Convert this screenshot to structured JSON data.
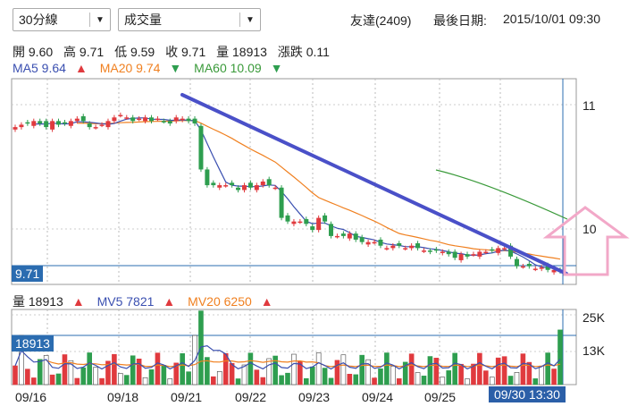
{
  "controls": {
    "interval_value": "30分線",
    "indicator_value": "成交量"
  },
  "stock": {
    "name_code": "友達(2409)",
    "updated_label": "最後日期:",
    "updated_value": "2015/10/01 09:30"
  },
  "ohlc": {
    "open": "開 9.60",
    "high": "高 9.71",
    "low": "低 9.59",
    "close": "收 9.71",
    "volume": "量 18913",
    "change": "漲跌 0.11"
  },
  "ma": {
    "ma5": "MA5 9.64",
    "ma20": "MA20 9.74",
    "ma60": "MA60 10.09"
  },
  "vol_ind": {
    "vol": "量 18913",
    "mv5": "MV5 7821",
    "mv20": "MV20 6250"
  },
  "price_tag": "9.71",
  "vol_tag": "18913",
  "cursor_time": "09/30 13:30",
  "yaxis_price": [
    "11",
    "10"
  ],
  "yaxis_vol": [
    "25K",
    "13K"
  ],
  "xaxis": [
    "09/16",
    "09/18",
    "09/21",
    "09/22",
    "09/23",
    "09/24",
    "09/25"
  ],
  "colors": {
    "up": "#e03a3e",
    "down": "#2e9e4f",
    "ma5": "#3a4fb0",
    "ma20": "#f08020",
    "ma60": "#3a9a3a",
    "annotation": "#4a50c8",
    "arrow": "#f2a8c8",
    "tag": "#2b6cb0"
  },
  "chart_data": {
    "type": "candlestick",
    "price_ylim": [
      9.6,
      11.3
    ],
    "volume_ylim": [
      0,
      26000
    ],
    "x_labels": [
      "09/16",
      "09/18",
      "09/21",
      "09/22",
      "09/23",
      "09/24",
      "09/25",
      "09/30 13:30"
    ],
    "candles_close": [
      10.9,
      10.92,
      10.93,
      10.95,
      10.93,
      10.9,
      10.95,
      10.92,
      10.93,
      10.95,
      10.97,
      10.95,
      10.9,
      10.9,
      10.92,
      10.95,
      10.98,
      11.0,
      10.98,
      10.95,
      10.97,
      10.98,
      10.95,
      10.97,
      10.95,
      10.93,
      10.98,
      10.97,
      10.95,
      10.93,
      10.55,
      10.42,
      10.42,
      10.42,
      10.42,
      10.42,
      10.38,
      10.42,
      10.4,
      10.42,
      10.45,
      10.42,
      10.4,
      10.15,
      10.12,
      10.12,
      10.12,
      10.1,
      10.05,
      10.15,
      10.12,
      10.0,
      10.0,
      10.0,
      10.02,
      9.97,
      9.95,
      9.95,
      9.95,
      9.92,
      9.9,
      9.92,
      9.92,
      9.9,
      9.92,
      9.9,
      9.88,
      9.87,
      9.88,
      9.87,
      9.85,
      9.82,
      9.85,
      9.83,
      9.85,
      9.87,
      9.87,
      9.88,
      9.9,
      9.9,
      9.83,
      9.75,
      9.75,
      9.75,
      9.73,
      9.74,
      9.72,
      9.72,
      9.71
    ],
    "ma5_last": 9.64,
    "ma20_last": 9.74,
    "ma60_last": 10.09,
    "last_volume": 18913,
    "mv5_last": 7821,
    "mv20_last": 6250
  }
}
